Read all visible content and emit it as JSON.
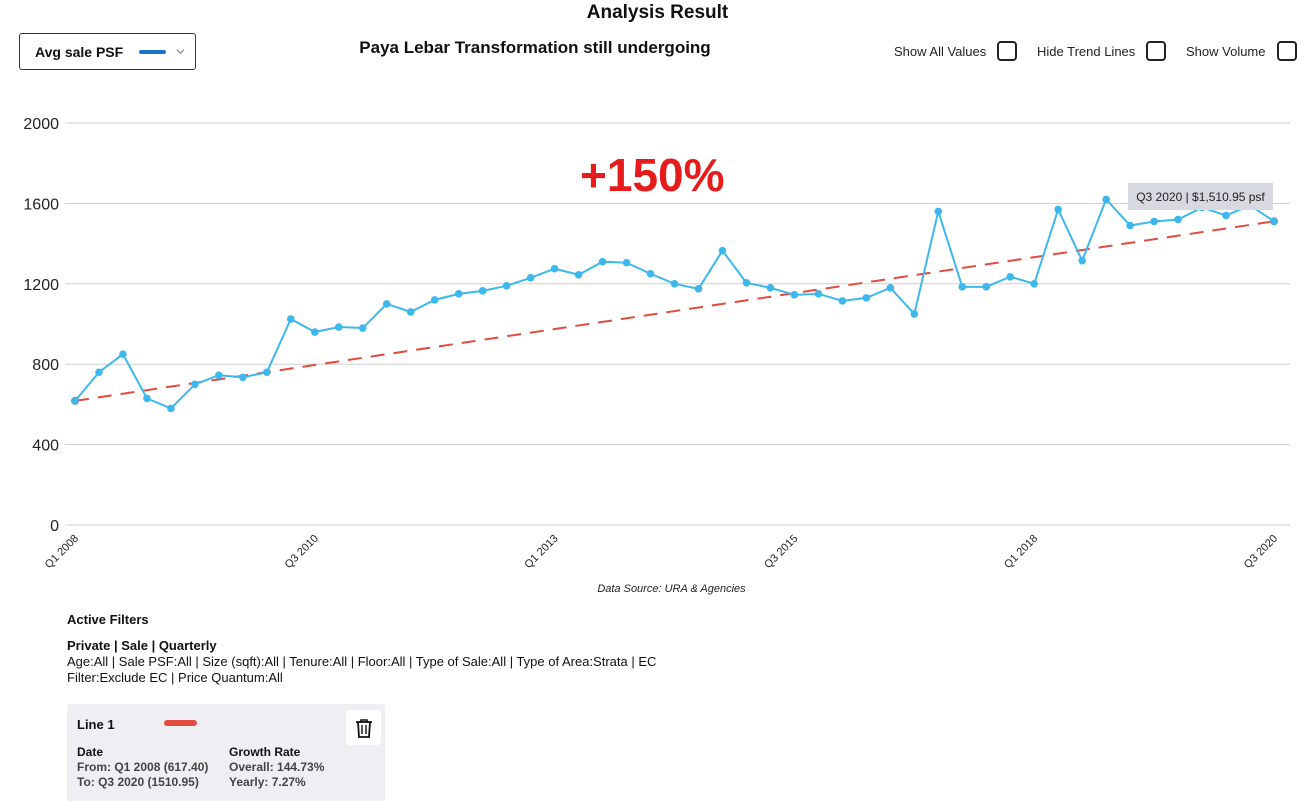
{
  "page_title": "Analysis Result",
  "metric_selector": {
    "label": "Avg sale PSF",
    "swatch_color": "#1a73c8"
  },
  "chart_title": "Paya Lebar Transformation still undergoing",
  "toggles": [
    {
      "label": "Show All Values",
      "checked": false
    },
    {
      "label": "Hide Trend Lines",
      "checked": false
    },
    {
      "label": "Show Volume",
      "checked": false
    }
  ],
  "annotation": "+150%",
  "tooltip": "Q3 2020 | $1,510.95 psf",
  "source": "Data Source: URA & Agencies",
  "filters": {
    "heading": "Active Filters",
    "mode": "Private | Sale | Quarterly",
    "detail": "Age:All | Sale PSF:All | Size (sqft):All | Tenure:All | Floor:All | Type of Sale:All | Type of Area:Strata | EC Filter:Exclude EC | Price Quantum:All"
  },
  "line_card": {
    "name": "Line 1",
    "swatch_color": "#e24b3f",
    "date_label": "Date",
    "from": "From: Q1 2008 (617.40)",
    "to": "To: Q3 2020 (1510.95)",
    "growth_label": "Growth Rate",
    "overall": "Overall: 144.73%",
    "yearly": "Yearly: 7.27%"
  },
  "chart_data": {
    "type": "line",
    "title": "Paya Lebar Transformation still undergoing",
    "xlabel": "",
    "ylabel": "",
    "ylim": [
      0,
      2000
    ],
    "yticks": [
      0,
      400,
      800,
      1200,
      1600,
      2000
    ],
    "grid": true,
    "x": [
      "Q1 2008",
      "Q2 2008",
      "Q3 2008",
      "Q4 2008",
      "Q1 2009",
      "Q2 2009",
      "Q3 2009",
      "Q4 2009",
      "Q1 2010",
      "Q2 2010",
      "Q3 2010",
      "Q4 2010",
      "Q1 2011",
      "Q2 2011",
      "Q3 2011",
      "Q4 2011",
      "Q1 2012",
      "Q2 2012",
      "Q3 2012",
      "Q4 2012",
      "Q1 2013",
      "Q2 2013",
      "Q3 2013",
      "Q4 2013",
      "Q1 2014",
      "Q2 2014",
      "Q3 2014",
      "Q4 2014",
      "Q1 2015",
      "Q2 2015",
      "Q3 2015",
      "Q4 2015",
      "Q1 2016",
      "Q2 2016",
      "Q3 2016",
      "Q4 2016",
      "Q1 2017",
      "Q2 2017",
      "Q3 2017",
      "Q4 2017",
      "Q1 2018",
      "Q2 2018",
      "Q3 2018",
      "Q4 2018",
      "Q1 2019",
      "Q2 2019",
      "Q3 2019",
      "Q4 2019",
      "Q1 2020",
      "Q2 2020",
      "Q3 2020"
    ],
    "x_tick_labels": [
      "Q1 2008",
      "Q3 2010",
      "Q1 2013",
      "Q3 2015",
      "Q1 2018",
      "Q3 2020"
    ],
    "series": [
      {
        "color": "#3db8ec",
        "values": [
          617,
          760,
          850,
          630,
          580,
          700,
          745,
          735,
          760,
          1025,
          960,
          985,
          980,
          1100,
          1060,
          1120,
          1150,
          1165,
          1190,
          1230,
          1275,
          1245,
          1310,
          1305,
          1250,
          1200,
          1175,
          1365,
          1205,
          1180,
          1145,
          1150,
          1115,
          1130,
          1180,
          1050,
          1560,
          1185,
          1185,
          1235,
          1200,
          1570,
          1315,
          1620,
          1490,
          1510,
          1520,
          1580,
          1540,
          1590,
          1511
        ]
      },
      {
        "color": "#e24b3f",
        "dashed": true,
        "trend_from": 617.4,
        "trend_to": 1510.95
      }
    ]
  }
}
